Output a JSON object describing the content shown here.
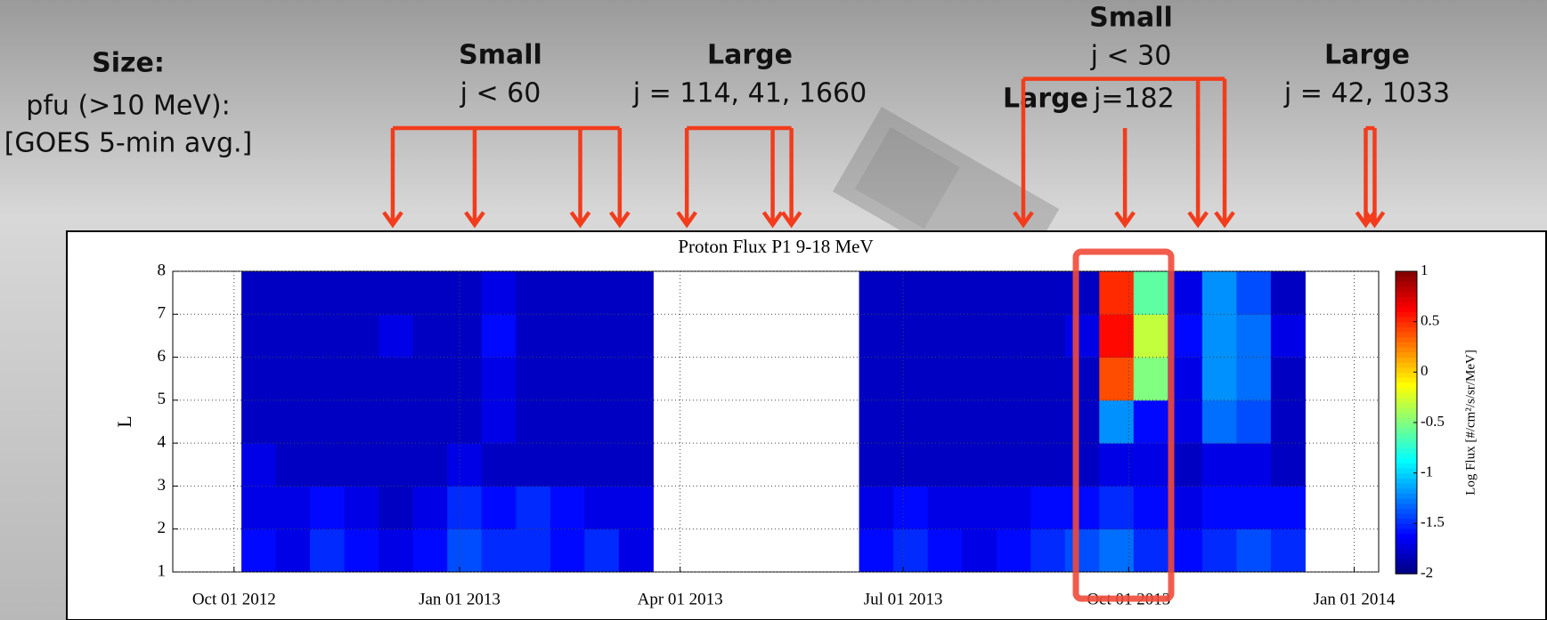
{
  "slide": {
    "size_title": "Size:",
    "size_line1": "pfu (>10 MeV):",
    "size_line2": "[GOES 5-min avg.]",
    "groups": [
      {
        "label": "Small",
        "detail": "j < 60"
      },
      {
        "label": "Large",
        "detail": "j = 114, 41, 1660"
      },
      {
        "label": "Small",
        "detail": "j < 30"
      },
      {
        "label": "Large",
        "detail": "j=182"
      },
      {
        "label": "Large",
        "detail": "j = 42, 1033"
      }
    ]
  },
  "chart_data": {
    "type": "heatmap",
    "title": "Proton Flux P1 9-18 MeV",
    "y_label": "L",
    "x_edges": [
      "2012-09-06",
      "2012-09-20",
      "2012-10-04",
      "2012-10-18",
      "2012-11-01",
      "2012-11-15",
      "2012-11-29",
      "2012-12-13",
      "2012-12-27",
      "2013-01-10",
      "2013-01-24",
      "2013-02-07",
      "2013-02-21",
      "2013-03-07",
      "2013-03-21",
      "2013-04-04",
      "2013-04-18",
      "2013-05-02",
      "2013-05-16",
      "2013-05-30",
      "2013-06-13",
      "2013-06-27",
      "2013-07-11",
      "2013-07-25",
      "2013-08-08",
      "2013-08-22",
      "2013-09-05",
      "2013-09-19",
      "2013-10-03",
      "2013-10-17",
      "2013-10-31",
      "2013-11-14",
      "2013-11-28",
      "2013-12-12",
      "2013-12-26",
      "2014-01-09"
    ],
    "y_edges": [
      1,
      2,
      3,
      4,
      5,
      6,
      7,
      8
    ],
    "values": [
      [
        null,
        null,
        -1.6,
        -1.7,
        -1.5,
        -1.6,
        -1.7,
        -1.6,
        -1.4,
        -1.5,
        -1.5,
        -1.6,
        -1.5,
        -1.7,
        null,
        null,
        null,
        null,
        null,
        null,
        -1.6,
        -1.5,
        -1.6,
        -1.7,
        -1.6,
        -1.5,
        -1.4,
        -1.3,
        -1.5,
        -1.6,
        -1.5,
        -1.4,
        -1.5,
        null,
        null
      ],
      [
        null,
        null,
        -1.7,
        -1.7,
        -1.6,
        -1.7,
        -1.8,
        -1.7,
        -1.5,
        -1.6,
        -1.5,
        -1.6,
        -1.7,
        -1.7,
        null,
        null,
        null,
        null,
        null,
        null,
        -1.7,
        -1.6,
        -1.7,
        -1.7,
        -1.7,
        -1.6,
        -1.6,
        -1.5,
        -1.6,
        -1.7,
        -1.6,
        -1.6,
        -1.6,
        null,
        null
      ],
      [
        null,
        null,
        -1.7,
        -1.8,
        -1.8,
        -1.8,
        -1.8,
        -1.8,
        -1.7,
        -1.8,
        -1.8,
        -1.8,
        -1.8,
        -1.8,
        null,
        null,
        null,
        null,
        null,
        null,
        -1.8,
        -1.8,
        -1.8,
        -1.8,
        -1.8,
        -1.8,
        -1.8,
        -1.7,
        -1.7,
        -1.8,
        -1.7,
        -1.7,
        -1.8,
        null,
        null
      ],
      [
        null,
        null,
        -1.8,
        -1.8,
        -1.8,
        -1.8,
        -1.8,
        -1.8,
        -1.8,
        -1.7,
        -1.8,
        -1.8,
        -1.8,
        -1.8,
        null,
        null,
        null,
        null,
        null,
        null,
        -1.8,
        -1.8,
        -1.8,
        -1.8,
        -1.8,
        -1.8,
        -1.8,
        -1.2,
        -1.6,
        -1.7,
        -1.3,
        -1.4,
        -1.8,
        null,
        null
      ],
      [
        null,
        null,
        -1.8,
        -1.8,
        -1.8,
        -1.8,
        -1.8,
        -1.8,
        -1.8,
        -1.7,
        -1.8,
        -1.8,
        -1.8,
        -1.8,
        null,
        null,
        null,
        null,
        null,
        null,
        -1.8,
        -1.8,
        -1.8,
        -1.8,
        -1.8,
        -1.8,
        -1.8,
        0.4,
        -0.5,
        -1.7,
        -1.2,
        -1.3,
        -1.8,
        null,
        null
      ],
      [
        null,
        null,
        -1.8,
        -1.8,
        -1.8,
        -1.8,
        -1.7,
        -1.8,
        -1.8,
        -1.6,
        -1.8,
        -1.8,
        -1.8,
        -1.8,
        null,
        null,
        null,
        null,
        null,
        null,
        -1.8,
        -1.8,
        -1.8,
        -1.8,
        -1.8,
        -1.8,
        -1.7,
        0.6,
        -0.3,
        -1.6,
        -1.2,
        -1.3,
        -1.7,
        null,
        null
      ],
      [
        null,
        null,
        -1.8,
        -1.8,
        -1.8,
        -1.8,
        -1.8,
        -1.8,
        -1.8,
        -1.7,
        -1.8,
        -1.8,
        -1.8,
        -1.8,
        null,
        null,
        null,
        null,
        null,
        null,
        -1.8,
        -1.8,
        -1.8,
        -1.8,
        -1.8,
        -1.8,
        -1.8,
        0.5,
        -0.6,
        -1.7,
        -1.2,
        -1.4,
        -1.8,
        null,
        null
      ]
    ],
    "xlim": [
      "2012-09-06",
      "2014-01-11"
    ],
    "xticks": [
      {
        "value": "2012-10-01",
        "label": "Oct 01 2012"
      },
      {
        "value": "2013-01-01",
        "label": "Jan 01 2013"
      },
      {
        "value": "2013-04-01",
        "label": "Apr 01 2013"
      },
      {
        "value": "2013-07-01",
        "label": "Jul 01 2013"
      },
      {
        "value": "2013-10-01",
        "label": "Oct 01 2013"
      },
      {
        "value": "2014-01-01",
        "label": "Jan 01 2014"
      }
    ],
    "ylim": [
      1,
      8
    ],
    "yticks": [
      1,
      2,
      3,
      4,
      5,
      6,
      7,
      8
    ],
    "grid": true,
    "colormap": "jet",
    "colorbar": {
      "label": "Log Flux [#/cm²/s/sr/MeV]",
      "lim": [
        -2,
        1
      ],
      "ticks": [
        -2,
        -1.5,
        -1,
        -0.5,
        0,
        0.5,
        1
      ]
    }
  }
}
